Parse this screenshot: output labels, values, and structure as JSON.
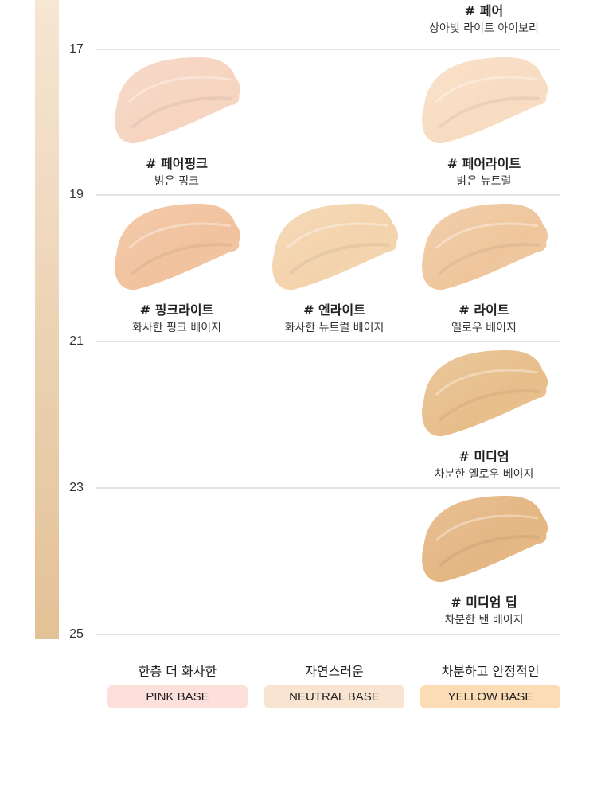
{
  "scale_ticks": [
    "17",
    "19",
    "21",
    "23",
    "25"
  ],
  "top_shade": {
    "name": "# 페어",
    "desc": "상아빛 라이트 아이보리"
  },
  "shades": [
    {
      "name": "# 페어핑크",
      "desc": "밝은 핑크",
      "color": "#f6d4c0",
      "row": 1,
      "col": 1
    },
    {
      "name": "# 페어라이트",
      "desc": "밝은 뉴트럴",
      "color": "#f8dcc1",
      "row": 1,
      "col": 3
    },
    {
      "name": "# 핑크라이트",
      "desc": "화사한 핑크 베이지",
      "color": "#f1c29d",
      "row": 2,
      "col": 1
    },
    {
      "name": "# 엔라이트",
      "desc": "화사한 뉴트럴 베이지",
      "color": "#f3d3ac",
      "row": 2,
      "col": 2
    },
    {
      "name": "# 라이트",
      "desc": "옐로우 베이지",
      "color": "#efc69c",
      "row": 2,
      "col": 3
    },
    {
      "name": "# 미디엄",
      "desc": "차분한 옐로우 베이지",
      "color": "#e7be8a",
      "row": 3,
      "col": 3
    },
    {
      "name": "# 미디엄 딥",
      "desc": "차분한 탠 베이지",
      "color": "#e4b682",
      "row": 4,
      "col": 3
    }
  ],
  "bases": [
    {
      "desc": "한층 더 화사한",
      "label": "PINK BASE",
      "color": "#fde0dc"
    },
    {
      "desc": "자연스러운",
      "label": "NEUTRAL BASE",
      "color": "#f9e4d2"
    },
    {
      "desc": "차분하고 안정적인",
      "label": "YELLOW BASE",
      "color": "#fbdcb4"
    }
  ]
}
